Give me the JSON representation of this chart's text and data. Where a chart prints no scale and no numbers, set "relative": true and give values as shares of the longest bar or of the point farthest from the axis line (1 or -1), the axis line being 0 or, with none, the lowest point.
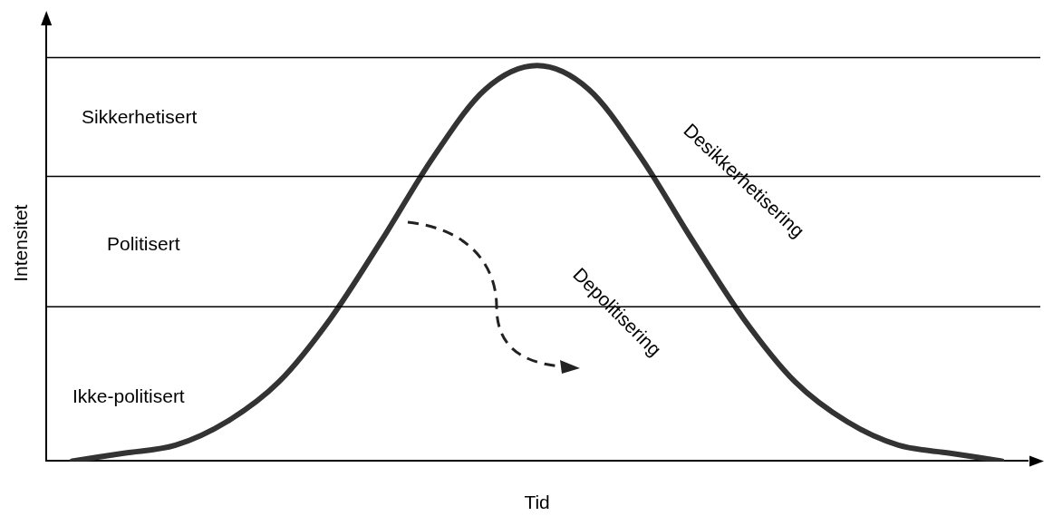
{
  "chart_data": {
    "type": "line",
    "relative": true,
    "xlabel": "Tid",
    "ylabel": "Intensitet",
    "categories": [
      null,
      null,
      null,
      null,
      null,
      null,
      null,
      null,
      null,
      null,
      null,
      null,
      null,
      null,
      null,
      null,
      null,
      null,
      null
    ],
    "series": [
      {
        "color": "#333333",
        "values": [
          0,
          0.02,
          0.04,
          0.1,
          0.2,
          0.36,
          0.56,
          0.77,
          0.94,
          1,
          0.94,
          0.77,
          0.56,
          0.36,
          0.2,
          0.1,
          0.04,
          0.02,
          0
        ]
      }
    ],
    "ref_lines": [
      {
        "axis": "y",
        "value": 1.02,
        "color": "#000000"
      },
      {
        "axis": "y",
        "value": 0.72,
        "color": "#000000"
      },
      {
        "axis": "y",
        "value": 0.39,
        "color": "#000000"
      }
    ],
    "annotations": [
      "Sikkerhetisert",
      "Politisert",
      "Ikke-politisert",
      "Desikkerhetisering",
      "Depolitisering"
    ],
    "grid": false,
    "legend": false,
    "marker": "none",
    "line_style": "solid"
  }
}
